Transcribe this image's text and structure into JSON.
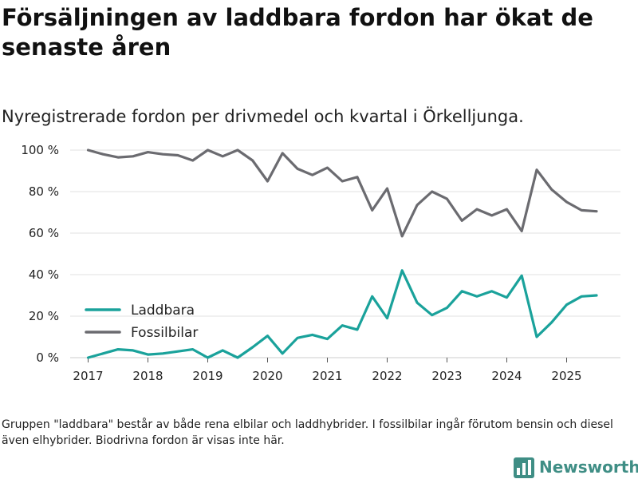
{
  "header": {
    "title": "Försäljningen av laddbara fordon har ökat de senaste åren",
    "subtitle": "Nyregistrerade fordon per drivmedel och kvartal i Örkelljunga."
  },
  "footnote": "Gruppen \"laddbara\" består av både rena elbilar och laddhybrider. I fossilbilar ingår förutom bensin och diesel även elhybrider. Biodrivna fordon är visas inte här.",
  "brand": {
    "name": "Newsworthy",
    "icon": "bar-chart-logo-icon",
    "color": "#3f8e85"
  },
  "chart_data": {
    "type": "line",
    "title": "Försäljningen av laddbara fordon har ökat de senaste åren",
    "subtitle": "Nyregistrerade fordon per drivmedel och kvartal i Örkelljunga.",
    "xlabel": "",
    "ylabel": "",
    "x_ticks": [
      "2017",
      "2018",
      "2019",
      "2020",
      "2021",
      "2022",
      "2023",
      "2024",
      "2025"
    ],
    "y_ticks": [
      "0 %",
      "20 %",
      "40 %",
      "60 %",
      "80 %",
      "100 %"
    ],
    "ylim": [
      0,
      100
    ],
    "xlim": [
      2016.7,
      2025.9
    ],
    "grid": "horizontal",
    "legend_position": "lower-left",
    "x": [
      2017.0,
      2017.25,
      2017.5,
      2017.75,
      2018.0,
      2018.25,
      2018.5,
      2018.75,
      2019.0,
      2019.25,
      2019.5,
      2019.75,
      2020.0,
      2020.25,
      2020.5,
      2020.75,
      2021.0,
      2021.25,
      2021.5,
      2021.75,
      2022.0,
      2022.25,
      2022.5,
      2022.75,
      2023.0,
      2023.25,
      2023.5,
      2023.75,
      2024.0,
      2024.25,
      2024.5,
      2024.75,
      2025.0,
      2025.25,
      2025.5
    ],
    "series": [
      {
        "name": "Laddbara",
        "color": "#1aa29b",
        "values": [
          0,
          2,
          4,
          3.5,
          1.5,
          2,
          3,
          4,
          0,
          3.5,
          0,
          5,
          10.5,
          2,
          9.5,
          11,
          9,
          15.5,
          13.5,
          29.5,
          19,
          42,
          26.5,
          20.5,
          24,
          32,
          29.5,
          32,
          29,
          39.5,
          10,
          17,
          25.5,
          29.5,
          30
        ]
      },
      {
        "name": "Fossilbilar",
        "color": "#6b6b70",
        "values": [
          100,
          98,
          96.5,
          97,
          99,
          98,
          97.5,
          95,
          100,
          97,
          100,
          95,
          85,
          98.5,
          91,
          88,
          91.5,
          85,
          87,
          71,
          81.5,
          58.5,
          73.5,
          80,
          76.5,
          66,
          71.5,
          68.5,
          71.5,
          61,
          90.5,
          81,
          75,
          71,
          70.5
        ]
      }
    ]
  }
}
